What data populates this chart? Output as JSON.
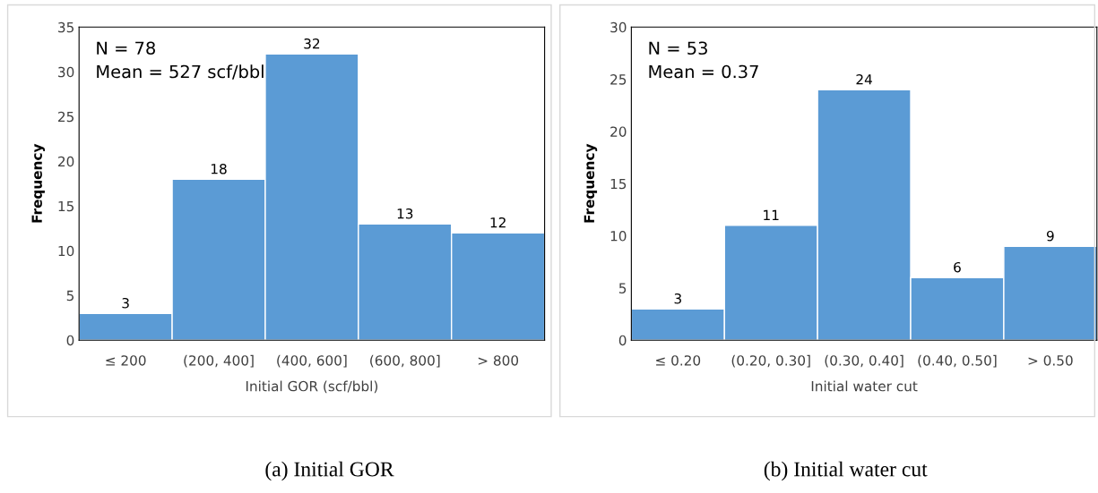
{
  "chart_data": [
    {
      "type": "bar",
      "categories": [
        "≤ 200",
        "(200, 400]",
        "(400, 600]",
        "(600, 800]",
        "> 800"
      ],
      "values": [
        3,
        18,
        32,
        13,
        12
      ],
      "color": "#5b9bd5",
      "ylim": [
        0,
        35
      ],
      "yticks": [
        0,
        5,
        10,
        15,
        20,
        25,
        30,
        35
      ],
      "xlabel": "Initial GOR (scf/bbl)",
      "ylabel": "Frequency",
      "data_labels": true,
      "grid": false,
      "legend": false,
      "annotations": [
        "N = 78",
        "Mean = 527 scf/bbl",
        "(a) Initial GOR"
      ]
    },
    {
      "type": "bar",
      "categories": [
        "≤ 0.20",
        "(0.20, 0.30]",
        "(0.30, 0.40]",
        "(0.40, 0.50]",
        "> 0.50"
      ],
      "values": [
        3,
        11,
        24,
        6,
        9
      ],
      "color": "#5b9bd5",
      "ylim": [
        0,
        30
      ],
      "yticks": [
        0,
        5,
        10,
        15,
        20,
        25,
        30
      ],
      "xlabel": "Initial water cut",
      "ylabel": "Frequency",
      "data_labels": true,
      "grid": false,
      "legend": false,
      "annotations": [
        "N = 53",
        "Mean = 0.37",
        "(b) Initial water cut"
      ]
    }
  ]
}
